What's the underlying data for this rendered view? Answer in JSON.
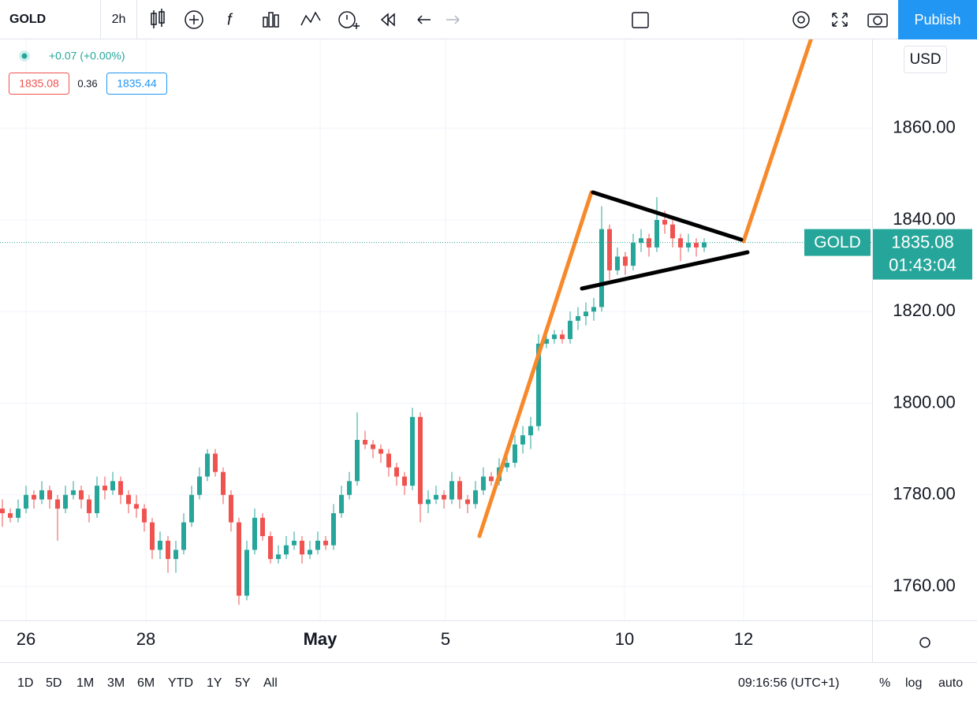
{
  "toolbar": {
    "symbol": "GOLD",
    "interval": "2h",
    "publish": "Publish"
  },
  "legend": {
    "change": "+0.07 (+0.00%)",
    "bid": "1835.08",
    "spread": "0.36",
    "ask": "1835.44"
  },
  "chart": {
    "type": "candlestick",
    "currency": "USD",
    "symbol_tag": "GOLD",
    "up_color": "#26a69a",
    "down_color": "#ef5350",
    "ylim": [
      1752.6,
      1879.4
    ],
    "yticks": [
      {
        "value": 1760,
        "label": "1760.00"
      },
      {
        "value": 1780,
        "label": "1780.00"
      },
      {
        "value": 1800,
        "label": "1800.00"
      },
      {
        "value": 1820,
        "label": "1820.00"
      },
      {
        "value": 1840,
        "label": "1840.00"
      },
      {
        "value": 1860,
        "label": "1860.00"
      }
    ],
    "xlim": [
      -0.3,
      110.3
    ],
    "xticks": [
      {
        "value": 3,
        "label": "26"
      },
      {
        "value": 18.2,
        "label": "28"
      },
      {
        "value": 40.3,
        "label": "May"
      },
      {
        "value": 56.2,
        "label": "5"
      },
      {
        "value": 78.9,
        "label": "10"
      },
      {
        "value": 94,
        "label": "12"
      }
    ],
    "last_price": {
      "value": 1835.08,
      "label": "1835.08"
    },
    "countdown": "01:43:04",
    "candles": [
      [
        1777,
        1779,
        1773,
        1776
      ],
      [
        1776,
        1777,
        1774,
        1775
      ],
      [
        1775,
        1779,
        1774,
        1777
      ],
      [
        1777,
        1782,
        1776,
        1780
      ],
      [
        1780,
        1781,
        1777,
        1779
      ],
      [
        1779,
        1783,
        1778,
        1781
      ],
      [
        1781,
        1782,
        1777,
        1779
      ],
      [
        1779,
        1780,
        1770,
        1777
      ],
      [
        1777,
        1782,
        1776,
        1780
      ],
      [
        1780,
        1783,
        1779,
        1781
      ],
      [
        1781,
        1782,
        1777,
        1779
      ],
      [
        1779,
        1780,
        1774,
        1776
      ],
      [
        1776,
        1784,
        1775,
        1782
      ],
      [
        1782,
        1784,
        1779,
        1781
      ],
      [
        1781,
        1785,
        1780,
        1783
      ],
      [
        1783,
        1784,
        1778,
        1780
      ],
      [
        1780,
        1781,
        1776,
        1778
      ],
      [
        1778,
        1780,
        1775,
        1777
      ],
      [
        1777,
        1778,
        1772,
        1774
      ],
      [
        1774,
        1775,
        1766,
        1768
      ],
      [
        1768,
        1772,
        1766,
        1770
      ],
      [
        1770,
        1771,
        1763,
        1766
      ],
      [
        1766,
        1770,
        1763,
        1768
      ],
      [
        1768,
        1776,
        1767,
        1774
      ],
      [
        1774,
        1782,
        1773,
        1780
      ],
      [
        1780,
        1786,
        1779,
        1784
      ],
      [
        1784,
        1790,
        1783,
        1789
      ],
      [
        1789,
        1790,
        1784,
        1785
      ],
      [
        1785,
        1786,
        1778,
        1780
      ],
      [
        1780,
        1781,
        1772,
        1774
      ],
      [
        1774,
        1775,
        1756,
        1758
      ],
      [
        1758,
        1770,
        1757,
        1768
      ],
      [
        1768,
        1777,
        1767,
        1775
      ],
      [
        1775,
        1776,
        1770,
        1771
      ],
      [
        1771,
        1772,
        1765,
        1766
      ],
      [
        1766,
        1769,
        1765,
        1767
      ],
      [
        1767,
        1771,
        1766,
        1769
      ],
      [
        1769,
        1772,
        1768,
        1770
      ],
      [
        1770,
        1771,
        1765,
        1767
      ],
      [
        1767,
        1770,
        1766,
        1768
      ],
      [
        1768,
        1772,
        1767,
        1770
      ],
      [
        1770,
        1771,
        1768,
        1769
      ],
      [
        1769,
        1778,
        1768,
        1776
      ],
      [
        1776,
        1782,
        1775,
        1780
      ],
      [
        1780,
        1785,
        1779,
        1783
      ],
      [
        1783,
        1798,
        1782,
        1792
      ],
      [
        1792,
        1794,
        1790,
        1791
      ],
      [
        1791,
        1792,
        1788,
        1790
      ],
      [
        1790,
        1791,
        1787,
        1789
      ],
      [
        1789,
        1790,
        1784,
        1786
      ],
      [
        1786,
        1787,
        1782,
        1784
      ],
      [
        1784,
        1785,
        1780,
        1782
      ],
      [
        1782,
        1799,
        1781,
        1797
      ],
      [
        1797,
        1798,
        1774,
        1778
      ],
      [
        1778,
        1781,
        1776,
        1779
      ],
      [
        1779,
        1782,
        1778,
        1780
      ],
      [
        1780,
        1781,
        1777,
        1779
      ],
      [
        1779,
        1785,
        1778,
        1783
      ],
      [
        1783,
        1784,
        1777,
        1779
      ],
      [
        1779,
        1780,
        1776,
        1778
      ],
      [
        1778,
        1783,
        1777,
        1781
      ],
      [
        1781,
        1786,
        1780,
        1784
      ],
      [
        1784,
        1785,
        1782,
        1783
      ],
      [
        1783,
        1788,
        1782,
        1786
      ],
      [
        1786,
        1789,
        1785,
        1787
      ],
      [
        1787,
        1793,
        1786,
        1791
      ],
      [
        1791,
        1795,
        1789,
        1793
      ],
      [
        1793,
        1797,
        1790,
        1795
      ],
      [
        1795,
        1815,
        1794,
        1813
      ],
      [
        1813,
        1816,
        1812,
        1814
      ],
      [
        1814,
        1816,
        1813,
        1815
      ],
      [
        1815,
        1816,
        1813,
        1814
      ],
      [
        1814,
        1820,
        1813,
        1818
      ],
      [
        1818,
        1821,
        1816,
        1819
      ],
      [
        1819,
        1822,
        1817,
        1820
      ],
      [
        1820,
        1823,
        1818,
        1821
      ],
      [
        1821,
        1843,
        1820,
        1838
      ],
      [
        1838,
        1839,
        1827,
        1829
      ],
      [
        1829,
        1834,
        1828,
        1832
      ],
      [
        1832,
        1833,
        1828,
        1830
      ],
      [
        1830,
        1837,
        1829,
        1835
      ],
      [
        1835,
        1838,
        1833,
        1836
      ],
      [
        1836,
        1837,
        1832,
        1834
      ],
      [
        1834,
        1845,
        1833,
        1840
      ],
      [
        1840,
        1842,
        1837,
        1839
      ],
      [
        1839,
        1840,
        1834,
        1836
      ],
      [
        1836,
        1837,
        1831,
        1834
      ],
      [
        1834,
        1837,
        1833,
        1835
      ],
      [
        1835,
        1836,
        1832,
        1834
      ],
      [
        1834,
        1836,
        1833,
        1835.08
      ]
    ]
  },
  "bottom_bar": {
    "ranges": [
      "1D",
      "5D",
      "1M",
      "3M",
      "6M",
      "YTD",
      "1Y",
      "5Y",
      "All"
    ],
    "time": "09:16:56 (UTC+1)",
    "options": [
      "%",
      "log",
      "auto"
    ]
  }
}
